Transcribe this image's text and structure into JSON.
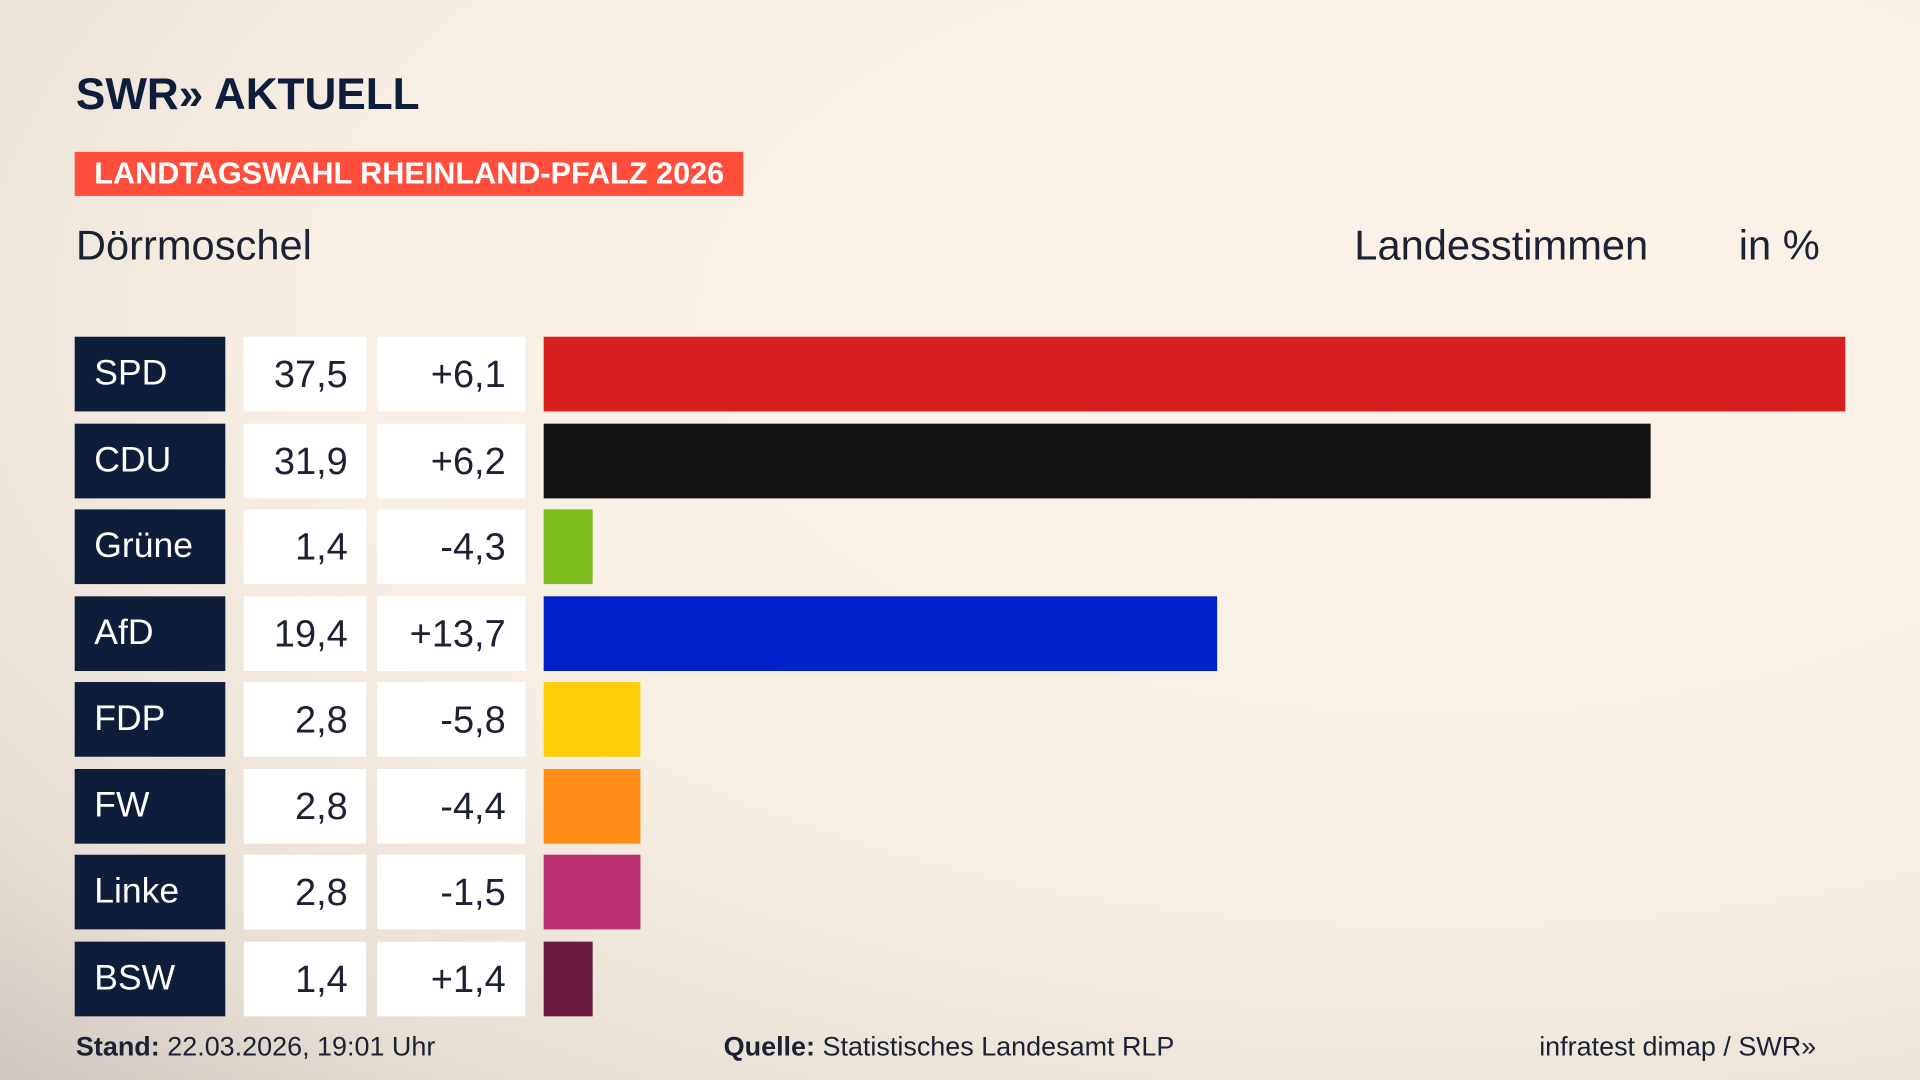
{
  "logo": "SWR» AKTUELL",
  "tag": "LANDTAGSWAHL RHEINLAND-PFALZ 2026",
  "place": "Dörrmoschel",
  "header": {
    "label": "Landesstimmen",
    "unit": "in %"
  },
  "chart_data": {
    "type": "bar",
    "orientation": "horizontal",
    "categories": [
      "SPD",
      "CDU",
      "Grüne",
      "AfD",
      "FDP",
      "FW",
      "Linke",
      "BSW"
    ],
    "values": [
      37.5,
      31.9,
      1.4,
      19.4,
      2.8,
      2.8,
      2.8,
      1.4
    ],
    "values_text": [
      "37,5",
      "31,9",
      "1,4",
      "19,4",
      "2,8",
      "2,8",
      "2,8",
      "1,4"
    ],
    "diffs_text": [
      "+6,1",
      "+6,2",
      "-4,3",
      "+13,7",
      "-5,8",
      "-4,4",
      "-1,5",
      "+1,4"
    ],
    "colors": [
      "#d81f20",
      "#111111",
      "#7cbc1c",
      "#0020c8",
      "#ffcc0a",
      "#ff8c14",
      "#bb2f73",
      "#6a1a3f"
    ],
    "xlim": [
      0,
      37.5
    ]
  },
  "footer": {
    "stand_label": "Stand:",
    "stand": "22.03.2026, 19:01 Uhr",
    "source_label": "Quelle:",
    "source": "Statistisches Landesamt RLP",
    "credit": "infratest dimap / SWR»"
  }
}
